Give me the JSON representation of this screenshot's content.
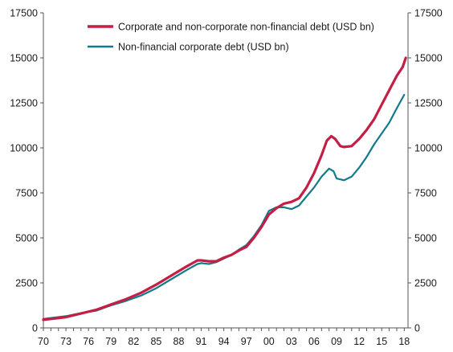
{
  "chart_data": {
    "type": "line",
    "x_tick_labels": [
      "70",
      "73",
      "76",
      "79",
      "82",
      "85",
      "88",
      "91",
      "94",
      "97",
      "00",
      "03",
      "06",
      "09",
      "12",
      "15",
      "18"
    ],
    "y_tick_labels": [
      "0",
      "2500",
      "5000",
      "7500",
      "10000",
      "12500",
      "15000",
      "17500"
    ],
    "xlim": [
      1970,
      2018.5
    ],
    "ylim": [
      0,
      17500
    ],
    "legend": "top-left",
    "grid": false,
    "series": [
      {
        "name": "Corporate and non-corporate non-financial debt (USD bn)",
        "color": "#c41e45",
        "points": [
          [
            1970,
            450
          ],
          [
            1973,
            600
          ],
          [
            1975,
            800
          ],
          [
            1977,
            1000
          ],
          [
            1979,
            1300
          ],
          [
            1981,
            1600
          ],
          [
            1983,
            1950
          ],
          [
            1985,
            2400
          ],
          [
            1987,
            2900
          ],
          [
            1989,
            3400
          ],
          [
            1990.5,
            3750
          ],
          [
            1991,
            3750
          ],
          [
            1992,
            3700
          ],
          [
            1993,
            3700
          ],
          [
            1994,
            3900
          ],
          [
            1995,
            4050
          ],
          [
            1996,
            4300
          ],
          [
            1997,
            4500
          ],
          [
            1998,
            5000
          ],
          [
            1999,
            5600
          ],
          [
            2000,
            6300
          ],
          [
            2001,
            6650
          ],
          [
            2002,
            6900
          ],
          [
            2003,
            7000
          ],
          [
            2004,
            7200
          ],
          [
            2005,
            7800
          ],
          [
            2006,
            8600
          ],
          [
            2007,
            9600
          ],
          [
            2007.7,
            10400
          ],
          [
            2008.3,
            10650
          ],
          [
            2008.8,
            10500
          ],
          [
            2009.5,
            10100
          ],
          [
            2010,
            10050
          ],
          [
            2011,
            10100
          ],
          [
            2012,
            10500
          ],
          [
            2013,
            11000
          ],
          [
            2014,
            11600
          ],
          [
            2015,
            12400
          ],
          [
            2016,
            13200
          ],
          [
            2017,
            14000
          ],
          [
            2017.8,
            14500
          ],
          [
            2018.2,
            15000
          ]
        ]
      },
      {
        "name": "Non-financial corporate debt (USD bn)",
        "color": "#117b8c",
        "points": [
          [
            1970,
            500
          ],
          [
            1973,
            650
          ],
          [
            1975,
            820
          ],
          [
            1977,
            950
          ],
          [
            1979,
            1250
          ],
          [
            1981,
            1500
          ],
          [
            1983,
            1800
          ],
          [
            1985,
            2200
          ],
          [
            1987,
            2700
          ],
          [
            1989,
            3200
          ],
          [
            1990.5,
            3550
          ],
          [
            1991,
            3600
          ],
          [
            1992,
            3550
          ],
          [
            1993,
            3650
          ],
          [
            1994,
            3850
          ],
          [
            1995,
            4050
          ],
          [
            1996,
            4350
          ],
          [
            1997,
            4600
          ],
          [
            1998,
            5100
          ],
          [
            1999,
            5700
          ],
          [
            2000,
            6500
          ],
          [
            2001,
            6700
          ],
          [
            2002,
            6700
          ],
          [
            2003,
            6600
          ],
          [
            2004,
            6800
          ],
          [
            2005,
            7300
          ],
          [
            2006,
            7800
          ],
          [
            2007,
            8400
          ],
          [
            2008,
            8850
          ],
          [
            2008.6,
            8700
          ],
          [
            2009,
            8300
          ],
          [
            2010,
            8200
          ],
          [
            2011,
            8400
          ],
          [
            2012,
            8900
          ],
          [
            2013,
            9500
          ],
          [
            2014,
            10200
          ],
          [
            2015,
            10800
          ],
          [
            2016,
            11400
          ],
          [
            2017,
            12200
          ],
          [
            2018,
            12950
          ]
        ]
      }
    ]
  }
}
